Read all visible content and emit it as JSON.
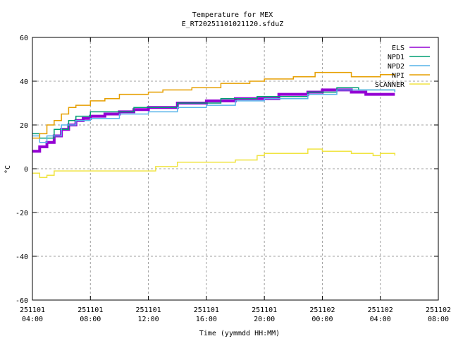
{
  "chart_data": {
    "type": "line",
    "title": "Temperature for MEX",
    "subtitle": "E_RT20251101021120.sfduZ",
    "xlabel": "Time (yymmdd HH:MM)",
    "ylabel": "°C",
    "ylim": [
      -60,
      60
    ],
    "xlim_hours_from_start": [
      0,
      28
    ],
    "yticks": [
      "-60",
      "-40",
      "-20",
      "0",
      "20",
      "40",
      "60"
    ],
    "xticks": [
      {
        "date": "251101",
        "time": "04:00"
      },
      {
        "date": "251101",
        "time": "08:00"
      },
      {
        "date": "251101",
        "time": "12:00"
      },
      {
        "date": "251101",
        "time": "16:00"
      },
      {
        "date": "251101",
        "time": "20:00"
      },
      {
        "date": "251102",
        "time": "00:00"
      },
      {
        "date": "251102",
        "time": "04:00"
      },
      {
        "date": "251102",
        "time": "08:00"
      }
    ],
    "grid": true,
    "legend": "top-right",
    "series": [
      {
        "name": "ELS",
        "color": "#9400d3",
        "width": 4,
        "x": [
          0,
          0.5,
          1,
          1.5,
          2,
          2.5,
          3,
          3.5,
          4,
          5,
          6,
          7,
          8,
          10,
          12,
          14,
          15,
          17,
          19,
          20,
          22,
          23,
          25
        ],
        "y": [
          8,
          10,
          12,
          15,
          18,
          20,
          22,
          23,
          24,
          25,
          26,
          27,
          28,
          30,
          31,
          32,
          32,
          34,
          35,
          36,
          35,
          34,
          34
        ]
      },
      {
        "name": "NPD1",
        "color": "#009e73",
        "width": 1.5,
        "x": [
          0,
          0.5,
          1.5,
          2.5,
          3,
          4,
          5,
          7,
          10,
          13,
          15.5,
          19,
          21,
          22.5,
          25
        ],
        "y": [
          16,
          14,
          18,
          22,
          24,
          26,
          26,
          28,
          30,
          32,
          33,
          35,
          37,
          36,
          35
        ]
      },
      {
        "name": "NPD2",
        "color": "#56b4e9",
        "width": 1.5,
        "x": [
          0,
          0.5,
          1,
          2,
          3,
          4,
          6,
          8,
          10,
          12,
          14,
          16,
          19,
          21,
          25
        ],
        "y": [
          15,
          12,
          15,
          20,
          22,
          23,
          25,
          26,
          28,
          29,
          31,
          32,
          34,
          36,
          35
        ]
      },
      {
        "name": "NPI",
        "color": "#e69f00",
        "width": 1.5,
        "x": [
          0,
          0.5,
          1,
          1.5,
          2,
          2.5,
          3,
          4,
          5,
          6,
          7,
          8,
          9,
          11,
          13,
          15,
          16,
          18,
          19.5,
          22,
          24,
          25
        ],
        "y": [
          14,
          16,
          20,
          22,
          25,
          28,
          29,
          31,
          32,
          34,
          34,
          35,
          36,
          37,
          39,
          40,
          41,
          42,
          44,
          42,
          43,
          43
        ]
      },
      {
        "name": "SCANNER",
        "color": "#f0e442",
        "width": 1.5,
        "x": [
          0,
          0.5,
          1,
          1.5,
          2,
          4,
          6,
          8,
          8.5,
          10,
          13,
          14,
          15.5,
          16,
          18,
          19,
          20,
          22,
          23.5,
          24,
          25
        ],
        "y": [
          -2,
          -4,
          -3,
          -1,
          -1,
          -1,
          -1,
          -1,
          1,
          3,
          3,
          4,
          6,
          7,
          7,
          9,
          8,
          7,
          6,
          7,
          6
        ]
      }
    ]
  }
}
